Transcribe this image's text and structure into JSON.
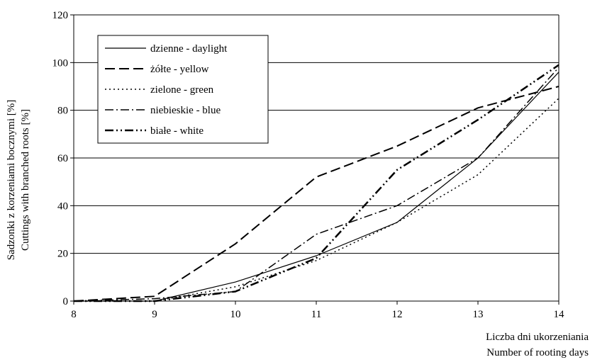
{
  "chart_data": {
    "type": "line",
    "title": "",
    "xlabel_lines": [
      "Liczba dni ukorzeniania",
      "Number of rooting days"
    ],
    "ylabel_lines": [
      "Sadzonki z korzeniami bocznymi [%]",
      "Cuttings with branched roots [%]"
    ],
    "x": [
      8,
      9,
      10,
      11,
      12,
      13,
      14
    ],
    "xlim": [
      8,
      14
    ],
    "ylim": [
      0,
      120
    ],
    "xticks": [
      8,
      9,
      10,
      11,
      12,
      13,
      14
    ],
    "yticks": [
      0,
      20,
      40,
      60,
      80,
      100,
      120
    ],
    "grid": "horizontal",
    "legend_position": "top-left",
    "series": [
      {
        "name": "dzienne - daylight",
        "dash": "solid",
        "width": 1.2,
        "points": [
          [
            8,
            0
          ],
          [
            9,
            0
          ],
          [
            10,
            8
          ],
          [
            11,
            19
          ],
          [
            12,
            33
          ],
          [
            13,
            60
          ],
          [
            14,
            96
          ]
        ]
      },
      {
        "name": "żółte - yellow",
        "dash": "long-dash",
        "width": 2,
        "points": [
          [
            8,
            0
          ],
          [
            9,
            2
          ],
          [
            10,
            24
          ],
          [
            11,
            52
          ],
          [
            12,
            65
          ],
          [
            13,
            81
          ],
          [
            14,
            90
          ]
        ]
      },
      {
        "name": "zielone - green",
        "dash": "dotted",
        "width": 1.5,
        "points": [
          [
            8,
            0
          ],
          [
            9,
            0
          ],
          [
            10,
            6
          ],
          [
            11,
            17
          ],
          [
            12,
            33
          ],
          [
            13,
            53
          ],
          [
            14,
            85
          ]
        ]
      },
      {
        "name": "niebieskie - blue",
        "dash": "dash-dot",
        "width": 1.5,
        "points": [
          [
            8,
            0
          ],
          [
            9,
            1
          ],
          [
            10,
            4
          ],
          [
            11,
            28
          ],
          [
            12,
            40
          ],
          [
            13,
            60
          ],
          [
            14,
            98
          ]
        ]
      },
      {
        "name": "białe - white",
        "dash": "dash-dot-dot",
        "width": 2.5,
        "points": [
          [
            8,
            0
          ],
          [
            9,
            0
          ],
          [
            10,
            4
          ],
          [
            11,
            18
          ],
          [
            12,
            55
          ],
          [
            13,
            76
          ],
          [
            14,
            99
          ]
        ]
      }
    ]
  }
}
